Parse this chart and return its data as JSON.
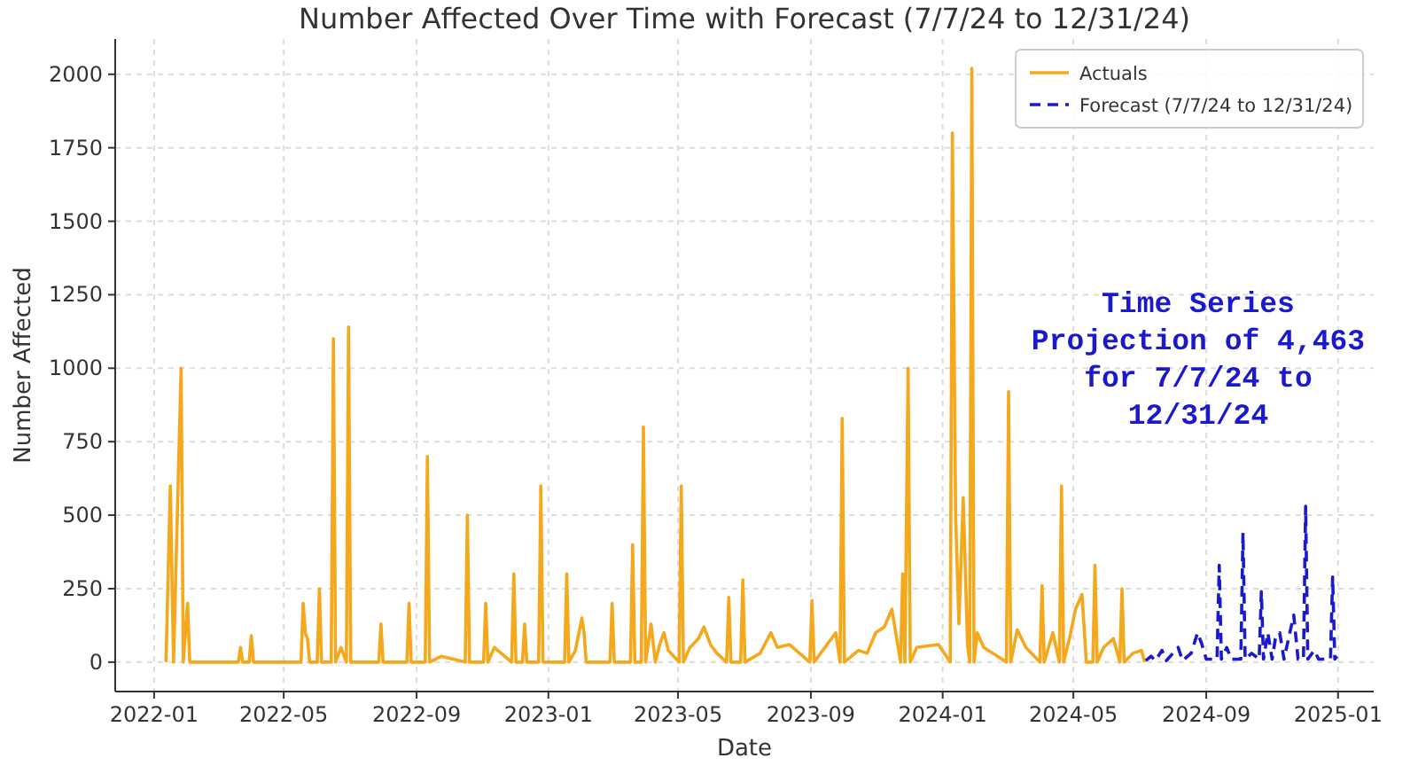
{
  "chart_data": {
    "type": "line",
    "title": "Number Affected Over Time with Forecast (7/7/24 to 12/31/24)",
    "xlabel": "Date",
    "ylabel": "Number Affected",
    "xlim": [
      "2021-11-26",
      "2025-02-03"
    ],
    "xticks": [
      "2022-01",
      "2022-05",
      "2022-09",
      "2023-01",
      "2023-05",
      "2023-09",
      "2024-01",
      "2024-05",
      "2024-09",
      "2025-01"
    ],
    "ylim": [
      -100,
      2120
    ],
    "yticks": [
      0,
      250,
      500,
      750,
      1000,
      1250,
      1500,
      1750,
      2000
    ],
    "grid": true,
    "legend": "top right",
    "annotations": [
      "Time Series\nProjection of 4,463\nfor 7/7/24 to\n12/31/24"
    ],
    "series": [
      {
        "name": "Actuals",
        "color": "#f5a81c",
        "line_style": "solid",
        "x": [
          "2022-01-12",
          "2022-01-16",
          "2022-01-19",
          "2022-01-26",
          "2022-01-28",
          "2022-02-01",
          "2022-02-03",
          "2022-03-20",
          "2022-03-22",
          "2022-03-24",
          "2022-03-30",
          "2022-04-01",
          "2022-04-03",
          "2022-05-17",
          "2022-05-19",
          "2022-05-21",
          "2022-05-23",
          "2022-05-25",
          "2022-06-01",
          "2022-06-03",
          "2022-06-05",
          "2022-06-14",
          "2022-06-16",
          "2022-06-18",
          "2022-06-23",
          "2022-06-28",
          "2022-06-30",
          "2022-07-02",
          "2022-07-28",
          "2022-07-30",
          "2022-08-01",
          "2022-08-23",
          "2022-08-25",
          "2022-08-27",
          "2022-09-09",
          "2022-09-11",
          "2022-09-13",
          "2022-09-24",
          "2022-10-16",
          "2022-10-18",
          "2022-10-20",
          "2022-11-02",
          "2022-11-04",
          "2022-11-06",
          "2022-11-12",
          "2022-11-28",
          "2022-11-30",
          "2022-12-02",
          "2022-12-08",
          "2022-12-10",
          "2022-12-12",
          "2022-12-23",
          "2022-12-25",
          "2022-12-27",
          "2023-01-16",
          "2023-01-18",
          "2023-01-20",
          "2023-01-26",
          "2023-02-01",
          "2023-02-03",
          "2023-02-05",
          "2023-02-27",
          "2023-03-01",
          "2023-03-03",
          "2023-03-18",
          "2023-03-20",
          "2023-03-22",
          "2023-03-28",
          "2023-03-30",
          "2023-04-01",
          "2023-04-06",
          "2023-04-10",
          "2023-04-14",
          "2023-04-18",
          "2023-04-22",
          "2023-05-02",
          "2023-05-04",
          "2023-05-06",
          "2023-05-12",
          "2023-05-20",
          "2023-05-25",
          "2023-05-31",
          "2023-06-06",
          "2023-06-15",
          "2023-06-17",
          "2023-06-19",
          "2023-06-28",
          "2023-06-30",
          "2023-07-02",
          "2023-07-16",
          "2023-07-26",
          "2023-08-01",
          "2023-08-12",
          "2023-08-31",
          "2023-09-02",
          "2023-09-04",
          "2023-09-24",
          "2023-09-28",
          "2023-09-30",
          "2023-10-02",
          "2023-10-15",
          "2023-10-23",
          "2023-10-31",
          "2023-11-08",
          "2023-11-15",
          "2023-11-23",
          "2023-11-25",
          "2023-11-27",
          "2023-11-30",
          "2023-12-02",
          "2023-12-08",
          "2023-12-28",
          "2024-01-08",
          "2024-01-10",
          "2024-01-13",
          "2024-01-16",
          "2024-01-20",
          "2024-01-24",
          "2024-01-26",
          "2024-01-28",
          "2024-01-30",
          "2024-02-02",
          "2024-02-08",
          "2024-02-29",
          "2024-03-02",
          "2024-03-04",
          "2024-03-10",
          "2024-03-18",
          "2024-03-31",
          "2024-04-02",
          "2024-04-04",
          "2024-04-12",
          "2024-04-18",
          "2024-04-20",
          "2024-04-22",
          "2024-04-28",
          "2024-05-03",
          "2024-05-09",
          "2024-05-13",
          "2024-05-19",
          "2024-05-21",
          "2024-05-23",
          "2024-05-29",
          "2024-06-07",
          "2024-06-13",
          "2024-06-15",
          "2024-06-17",
          "2024-06-25",
          "2024-07-03",
          "2024-07-06"
        ],
        "values": [
          0,
          600,
          0,
          1000,
          0,
          200,
          0,
          0,
          50,
          0,
          0,
          90,
          0,
          0,
          200,
          100,
          80,
          0,
          0,
          250,
          0,
          0,
          1100,
          0,
          50,
          0,
          1140,
          0,
          0,
          130,
          0,
          0,
          200,
          0,
          0,
          700,
          0,
          20,
          0,
          500,
          0,
          0,
          200,
          0,
          50,
          0,
          300,
          0,
          0,
          130,
          0,
          0,
          600,
          0,
          0,
          300,
          0,
          40,
          150,
          100,
          0,
          0,
          200,
          0,
          0,
          400,
          0,
          0,
          800,
          0,
          130,
          0,
          60,
          100,
          40,
          0,
          600,
          0,
          50,
          80,
          120,
          60,
          30,
          0,
          220,
          0,
          0,
          280,
          0,
          30,
          100,
          50,
          60,
          0,
          210,
          0,
          100,
          0,
          830,
          0,
          40,
          30,
          100,
          120,
          180,
          0,
          300,
          0,
          1000,
          0,
          50,
          60,
          0,
          1800,
          500,
          130,
          560,
          60,
          0,
          2020,
          0,
          100,
          50,
          0,
          920,
          0,
          110,
          50,
          0,
          260,
          0,
          100,
          0,
          600,
          0,
          90,
          180,
          230,
          0,
          0,
          330,
          0,
          50,
          80,
          0,
          250,
          0,
          30,
          40,
          0
        ]
      },
      {
        "name": "Forecast (7/7/24 to 12/31/24)",
        "color": "#1a1acc",
        "line_style": "dashed",
        "x": [
          "2024-07-07",
          "2024-07-12",
          "2024-07-16",
          "2024-07-22",
          "2024-07-26",
          "2024-08-06",
          "2024-08-10",
          "2024-08-18",
          "2024-08-24",
          "2024-08-28",
          "2024-09-01",
          "2024-09-11",
          "2024-09-13",
          "2024-09-15",
          "2024-09-20",
          "2024-09-24",
          "2024-10-03",
          "2024-10-05",
          "2024-10-07",
          "2024-10-13",
          "2024-10-20",
          "2024-10-22",
          "2024-10-24",
          "2024-10-28",
          "2024-11-01",
          "2024-11-04",
          "2024-11-08",
          "2024-11-12",
          "2024-11-21",
          "2024-11-25",
          "2024-11-30",
          "2024-12-02",
          "2024-12-04",
          "2024-12-10",
          "2024-12-14",
          "2024-12-25",
          "2024-12-27",
          "2024-12-29",
          "2024-12-31"
        ],
        "values": [
          5,
          20,
          5,
          40,
          5,
          50,
          5,
          30,
          100,
          60,
          10,
          10,
          330,
          10,
          50,
          10,
          10,
          440,
          10,
          30,
          10,
          240,
          10,
          100,
          10,
          80,
          100,
          10,
          160,
          10,
          10,
          530,
          10,
          40,
          10,
          10,
          290,
          10,
          20
        ]
      }
    ]
  }
}
